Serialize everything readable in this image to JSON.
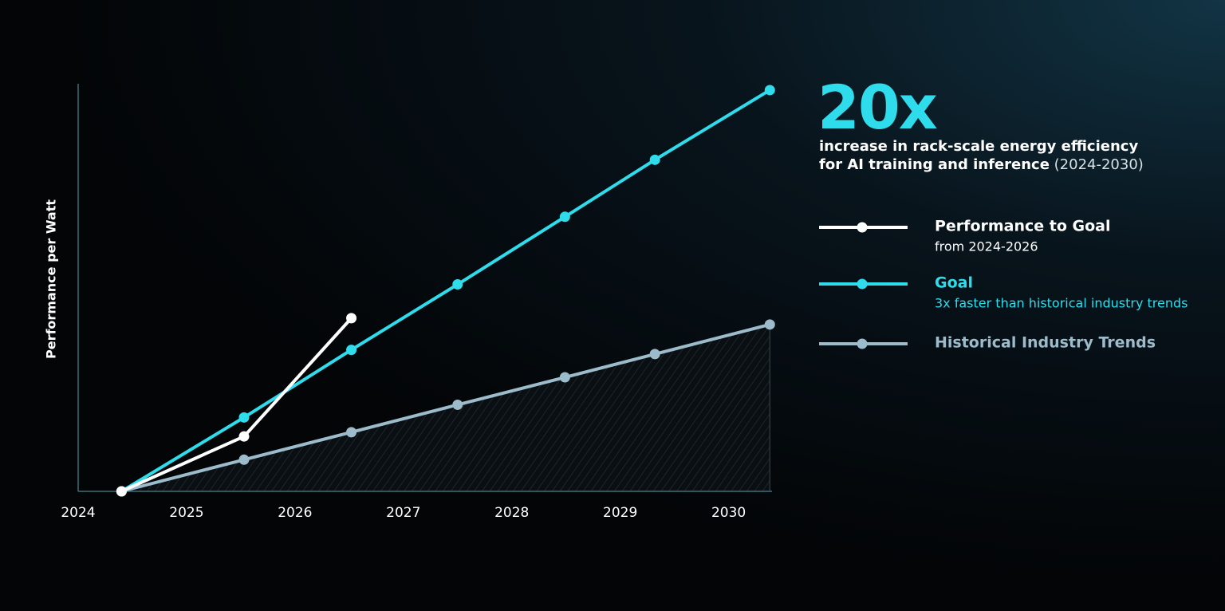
{
  "chart_data": {
    "type": "line",
    "headline": "20x",
    "headline_text": [
      "increase in rack-scale energy efficiency",
      "for AI training and inference"
    ],
    "headline_period": "(2024-2030)",
    "ylabel": "Performance per Watt",
    "xlim": [
      2024,
      2030.4
    ],
    "xticks": [
      2024,
      2025,
      2026,
      2027,
      2028,
      2029,
      2030
    ],
    "ylim": [
      1,
      20.3
    ],
    "series": [
      {
        "name": "Performance to Goal",
        "description": "from 2024-2026",
        "color": "#ffffff",
        "x": [
          2024.4,
          2025.53,
          2026.52
        ],
        "values": [
          1,
          3.6,
          9.2
        ]
      },
      {
        "name": "Goal",
        "description": "3x faster than historical industry trends",
        "color": "#2fdcec",
        "x": [
          2024.4,
          2025.53,
          2026.52,
          2027.5,
          2028.49,
          2029.32,
          2030.38
        ],
        "values": [
          1,
          4.5,
          7.7,
          10.8,
          14,
          16.7,
          20
        ]
      },
      {
        "name": "Historical Industry Trends",
        "color": "#9cbccb",
        "hatched_area": true,
        "x": [
          2024.4,
          2025.53,
          2026.52,
          2027.5,
          2028.49,
          2029.32,
          2030.38
        ],
        "values": [
          1,
          2.5,
          3.8,
          5.1,
          6.4,
          7.5,
          8.9
        ]
      }
    ]
  }
}
